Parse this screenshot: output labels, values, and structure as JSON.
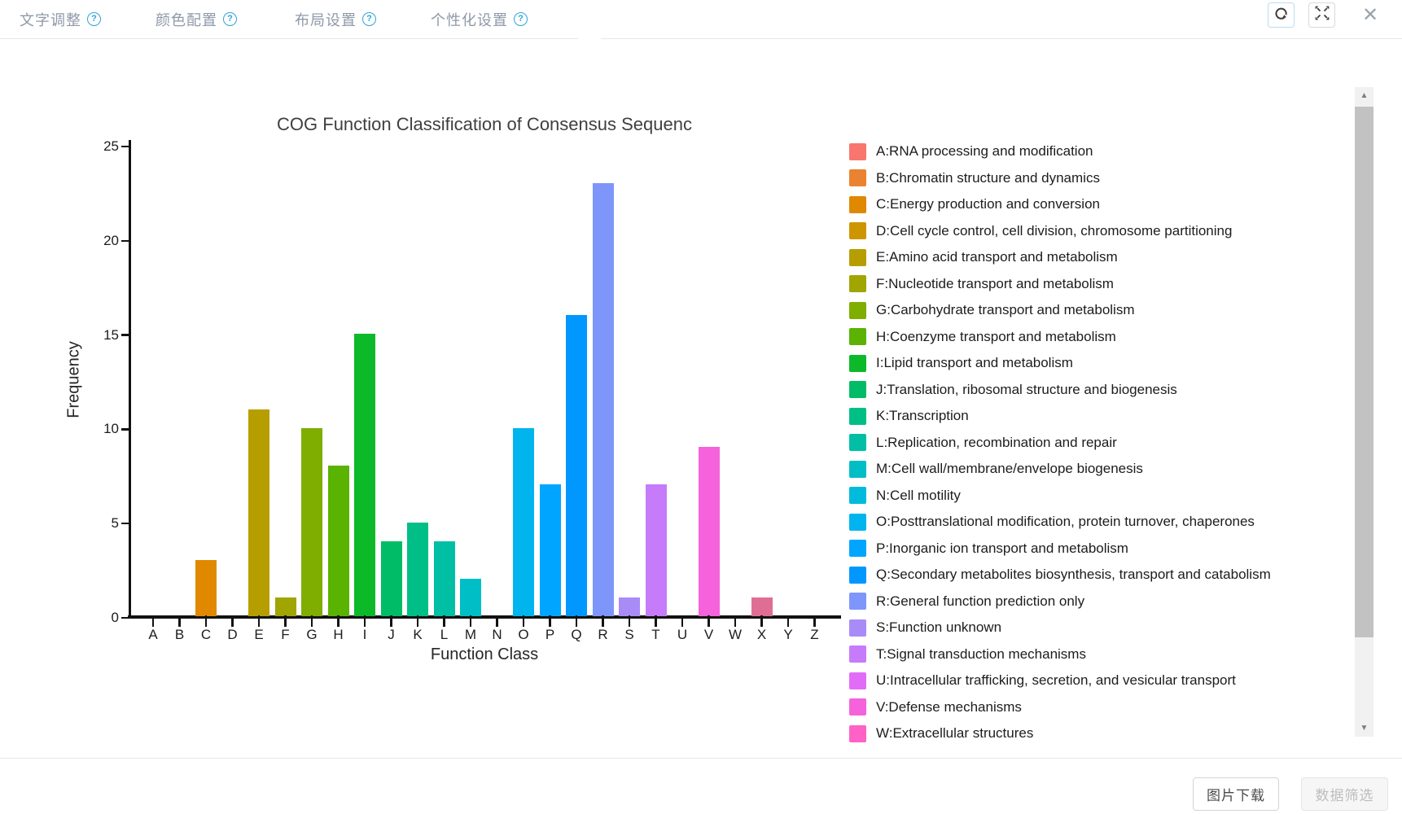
{
  "toolbar": {
    "menu_items": [
      {
        "label": "文字调整"
      },
      {
        "label": "颜色配置"
      },
      {
        "label": "布局设置"
      },
      {
        "label": "个性化设置"
      }
    ],
    "help_symbol": "?",
    "close_symbol": "✕"
  },
  "chart_data": {
    "type": "bar",
    "title": "COG Function Classification of Consensus Sequenc",
    "xlabel": "Function Class",
    "ylabel": "Frequency",
    "ylim": [
      0,
      25
    ],
    "yticks": [
      0,
      5,
      10,
      15,
      20,
      25
    ],
    "grid": false,
    "legend_position": "right",
    "categories": [
      "A",
      "B",
      "C",
      "D",
      "E",
      "F",
      "G",
      "H",
      "I",
      "J",
      "K",
      "L",
      "M",
      "N",
      "O",
      "P",
      "Q",
      "R",
      "S",
      "T",
      "U",
      "V",
      "W",
      "X",
      "Y",
      "Z"
    ],
    "values": [
      0,
      0,
      3,
      0,
      11,
      1,
      10,
      8,
      15,
      4,
      5,
      4,
      2,
      0,
      10,
      7,
      16,
      23,
      1,
      7,
      0,
      9,
      0,
      1,
      0,
      0
    ],
    "colors": {
      "A": "#F8766D",
      "B": "#EA8331",
      "C": "#E08900",
      "D": "#CD9600",
      "E": "#B79E00",
      "F": "#A0A500",
      "G": "#7FAD00",
      "H": "#5AB300",
      "I": "#0CB929",
      "J": "#00BC66",
      "K": "#00BF86",
      "L": "#00BFA4",
      "M": "#00BEC6",
      "N": "#00BBDC",
      "O": "#00B4EE",
      "P": "#00A5FF",
      "Q": "#0098FF",
      "R": "#7E96FA",
      "S": "#A98BF8",
      "T": "#C67CFA",
      "U": "#E16DF7",
      "V": "#F562DC",
      "W": "#FF61C7",
      "X": "#DE6E93"
    }
  },
  "legend": {
    "items": [
      {
        "letter": "A",
        "label": "A:RNA processing and modification"
      },
      {
        "letter": "B",
        "label": "B:Chromatin structure and dynamics"
      },
      {
        "letter": "C",
        "label": "C:Energy production and conversion"
      },
      {
        "letter": "D",
        "label": "D:Cell cycle control, cell division, chromosome partitioning"
      },
      {
        "letter": "E",
        "label": "E:Amino acid transport and metabolism"
      },
      {
        "letter": "F",
        "label": "F:Nucleotide transport and metabolism"
      },
      {
        "letter": "G",
        "label": "G:Carbohydrate transport and metabolism"
      },
      {
        "letter": "H",
        "label": "H:Coenzyme transport and metabolism"
      },
      {
        "letter": "I",
        "label": "I:Lipid transport and metabolism"
      },
      {
        "letter": "J",
        "label": "J:Translation, ribosomal structure and biogenesis"
      },
      {
        "letter": "K",
        "label": "K:Transcription"
      },
      {
        "letter": "L",
        "label": "L:Replication, recombination and repair"
      },
      {
        "letter": "M",
        "label": "M:Cell wall/membrane/envelope biogenesis"
      },
      {
        "letter": "N",
        "label": "N:Cell motility"
      },
      {
        "letter": "O",
        "label": "O:Posttranslational modification, protein turnover, chaperones"
      },
      {
        "letter": "P",
        "label": "P:Inorganic ion transport and metabolism"
      },
      {
        "letter": "Q",
        "label": "Q:Secondary metabolites biosynthesis, transport and catabolism"
      },
      {
        "letter": "R",
        "label": "R:General function prediction only"
      },
      {
        "letter": "S",
        "label": "S:Function unknown"
      },
      {
        "letter": "T",
        "label": "T:Signal transduction mechanisms"
      },
      {
        "letter": "U",
        "label": "U:Intracellular trafficking, secretion, and vesicular transport"
      },
      {
        "letter": "V",
        "label": "V:Defense mechanisms"
      },
      {
        "letter": "W",
        "label": "W:Extracellular structures"
      }
    ]
  },
  "footer": {
    "download_label": "图片下载",
    "filter_label": "数据筛选",
    "filter_disabled": true
  }
}
